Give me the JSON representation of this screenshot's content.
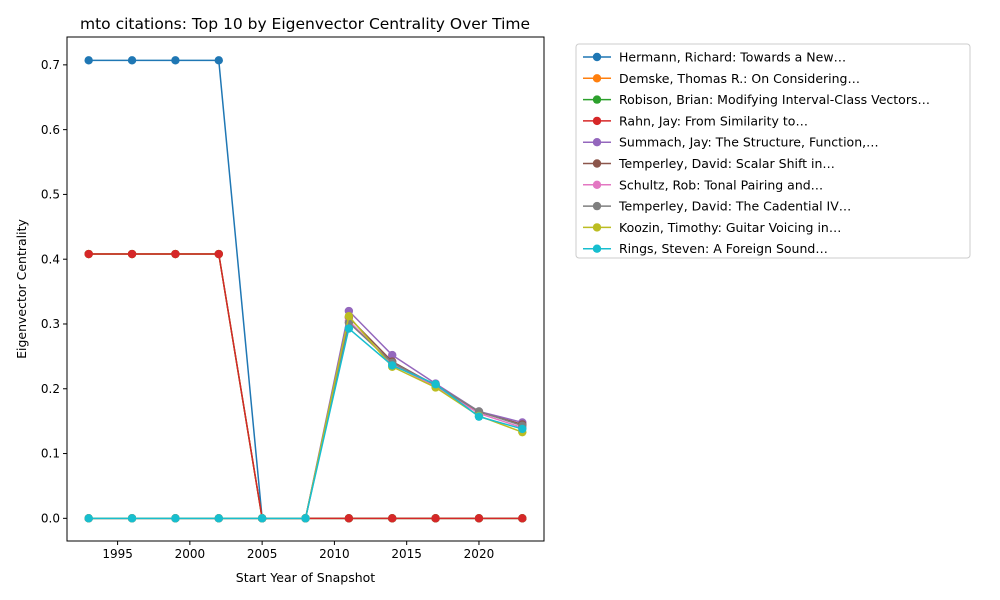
{
  "chart_data": {
    "type": "line",
    "title": "mto citations: Top 10 by Eigenvector Centrality Over Time",
    "xlabel": "Start Year of Snapshot",
    "ylabel": "Eigenvector Centrality",
    "x": [
      1993,
      1996,
      1999,
      2002,
      2005,
      2008,
      2011,
      2014,
      2017,
      2020,
      2023
    ],
    "xlim": [
      1991.5,
      2024.5
    ],
    "ylim": [
      -0.035,
      0.743
    ],
    "xticks": [
      1995,
      2000,
      2005,
      2010,
      2015,
      2020
    ],
    "yticks": [
      0.0,
      0.1,
      0.2,
      0.3,
      0.4,
      0.5,
      0.6,
      0.7
    ],
    "ytick_labels": [
      "0.0",
      "0.1",
      "0.2",
      "0.3",
      "0.4",
      "0.5",
      "0.6",
      "0.7"
    ],
    "grid": false,
    "legend_placement": "outside-right",
    "series": [
      {
        "name": "Hermann, Richard: Towards a New…",
        "color": "#1f77b4",
        "values": [
          0.707,
          0.707,
          0.707,
          0.707,
          0.0,
          0.0,
          0.0,
          0.0,
          0.0,
          0.0,
          0.0
        ]
      },
      {
        "name": "Demske, Thomas R.: On Considering…",
        "color": "#ff7f0e",
        "values": [
          0.408,
          0.408,
          0.408,
          0.408,
          0.0,
          0.0,
          0.0,
          0.0,
          0.0,
          0.0,
          0.0
        ]
      },
      {
        "name": "Robison, Brian: Modifying Interval-Class Vectors…",
        "color": "#2ca02c",
        "values": [
          0.408,
          0.408,
          0.408,
          0.408,
          0.0,
          0.0,
          0.0,
          0.0,
          0.0,
          0.0,
          0.0
        ]
      },
      {
        "name": "Rahn, Jay: From Similarity to…",
        "color": "#d62728",
        "values": [
          0.408,
          0.408,
          0.408,
          0.408,
          0.0,
          0.0,
          0.0,
          0.0,
          0.0,
          0.0,
          0.0
        ]
      },
      {
        "name": "Summach, Jay: The Structure, Function,…",
        "color": "#9467bd",
        "values": [
          0.0,
          0.0,
          0.0,
          0.0,
          0.0,
          0.0,
          0.32,
          0.252,
          0.208,
          0.165,
          0.148
        ]
      },
      {
        "name": "Temperley, David: Scalar Shift in…",
        "color": "#8c564b",
        "values": [
          0.0,
          0.0,
          0.0,
          0.0,
          0.0,
          0.0,
          0.31,
          0.242,
          0.205,
          0.164,
          0.145
        ]
      },
      {
        "name": "Schultz, Rob: Tonal Pairing and…",
        "color": "#e377c2",
        "values": [
          0.0,
          0.0,
          0.0,
          0.0,
          0.0,
          0.0,
          0.305,
          0.238,
          0.203,
          0.162,
          0.14
        ]
      },
      {
        "name": "Temperley, David: The Cadential IV…",
        "color": "#7f7f7f",
        "values": [
          0.0,
          0.0,
          0.0,
          0.0,
          0.0,
          0.0,
          0.302,
          0.24,
          0.206,
          0.165,
          0.143
        ]
      },
      {
        "name": "Koozin, Timothy: Guitar Voicing in…",
        "color": "#bcbd22",
        "values": [
          0.0,
          0.0,
          0.0,
          0.0,
          0.0,
          0.0,
          0.312,
          0.234,
          0.202,
          0.158,
          0.133
        ]
      },
      {
        "name": "Rings, Steven: A Foreign Sound…",
        "color": "#17becf",
        "values": [
          0.0,
          0.0,
          0.0,
          0.0,
          0.0,
          0.0,
          0.293,
          0.236,
          0.207,
          0.157,
          0.138
        ]
      }
    ]
  }
}
